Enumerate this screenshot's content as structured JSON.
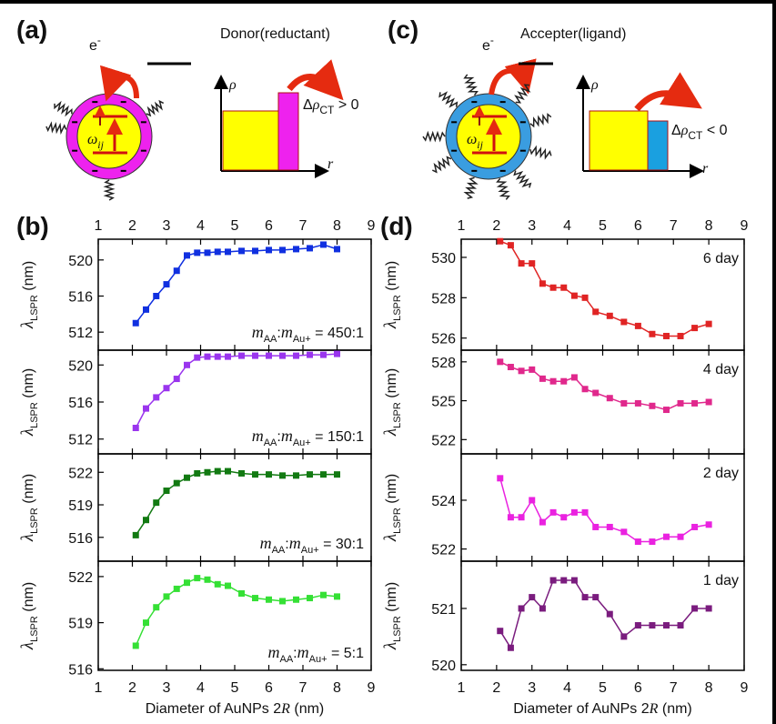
{
  "figure": {
    "panel_labels": [
      "(a)",
      "(b)",
      "(c)",
      "(d)"
    ],
    "diagrams": [
      {
        "electron": [
          "e",
          "-"
        ],
        "title": "Donor(reductant)",
        "density_axis": "ρ",
        "radius_axis": "r",
        "transition": [
          "ω",
          "ij"
        ],
        "charge_transfer": [
          "Δ",
          "ρ",
          "CT",
          " > 0"
        ]
      },
      {
        "electron": [
          "e",
          "-"
        ],
        "title": "Accepter(ligand)",
        "density_axis": "ρ",
        "radius_axis": "r",
        "transition": [
          "ω",
          "ij"
        ],
        "charge_transfer": [
          "Δ",
          "ρ",
          "CT",
          " < 0"
        ]
      }
    ]
  },
  "chart_data": [
    {
      "type": "line",
      "x": [
        2.1,
        2.4,
        2.7,
        3.0,
        3.3,
        3.6,
        3.9,
        4.2,
        4.5,
        4.8,
        5.2,
        5.6,
        6.0,
        6.4,
        6.8,
        7.2,
        7.6,
        8.0
      ],
      "values": [
        513,
        514.5,
        516,
        517.3,
        518.8,
        520.5,
        520.8,
        520.8,
        520.9,
        520.9,
        521,
        521,
        521.1,
        521.1,
        521.2,
        521.3,
        521.7,
        521.2
      ],
      "color": "#1030e0",
      "xlim": [
        1,
        9
      ],
      "xticks": [
        1,
        2,
        3,
        4,
        5,
        6,
        7,
        8,
        9
      ],
      "ylim": [
        510,
        522.3
      ],
      "yticks": [
        512,
        516,
        520
      ],
      "ylabel": [
        "λ",
        "LSPR",
        " (nm)"
      ],
      "annotation": [
        "m",
        "AA",
        ":",
        "m",
        "Au+",
        " = 450:1"
      ]
    },
    {
      "type": "line",
      "x": [
        2.1,
        2.4,
        2.7,
        3.0,
        3.3,
        3.6,
        3.9,
        4.2,
        4.5,
        4.8,
        5.2,
        5.6,
        6.0,
        6.4,
        6.8,
        7.2,
        7.6,
        8.0
      ],
      "values": [
        513.2,
        515.3,
        516.5,
        517.5,
        518.5,
        520,
        520.8,
        520.9,
        520.9,
        520.9,
        521,
        521,
        521,
        521,
        521,
        521.1,
        521.1,
        521.2
      ],
      "color": "#9a35ee",
      "xlim": [
        1,
        9
      ],
      "xticks": [
        1,
        2,
        3,
        4,
        5,
        6,
        7,
        8,
        9
      ],
      "ylim": [
        510.4,
        521.6
      ],
      "yticks": [
        512,
        516,
        520
      ],
      "ylabel": [
        "λ",
        "LSPR",
        " (nm)"
      ],
      "annotation": [
        "m",
        "AA",
        ":",
        "m",
        "Au+",
        " = 150:1"
      ]
    },
    {
      "type": "line",
      "x": [
        2.1,
        2.4,
        2.7,
        3.0,
        3.3,
        3.6,
        3.9,
        4.2,
        4.5,
        4.8,
        5.2,
        5.6,
        6.0,
        6.4,
        6.8,
        7.2,
        7.6,
        8.0
      ],
      "values": [
        516.2,
        517.6,
        519.2,
        520.3,
        521,
        521.5,
        521.9,
        522,
        522.1,
        522.1,
        521.9,
        521.8,
        521.8,
        521.7,
        521.7,
        521.8,
        521.8,
        521.8
      ],
      "color": "#127a12",
      "xlim": [
        1,
        9
      ],
      "xticks": [
        1,
        2,
        3,
        4,
        5,
        6,
        7,
        8,
        9
      ],
      "ylim": [
        513.8,
        523.7
      ],
      "yticks": [
        516,
        519,
        522
      ],
      "ylabel": [
        "λ",
        "LSPR",
        " (nm)"
      ],
      "annotation": [
        "m",
        "AA",
        ":",
        "m",
        "Au+",
        " = 30:1"
      ]
    },
    {
      "type": "line",
      "x": [
        2.1,
        2.4,
        2.7,
        3.0,
        3.3,
        3.6,
        3.9,
        4.2,
        4.5,
        4.8,
        5.2,
        5.6,
        6.0,
        6.4,
        6.8,
        7.2,
        7.6,
        8.0
      ],
      "values": [
        517.5,
        519,
        520,
        520.7,
        521.2,
        521.6,
        521.9,
        521.8,
        521.5,
        521.4,
        520.9,
        520.6,
        520.5,
        520.4,
        520.5,
        520.6,
        520.8,
        520.7
      ],
      "color": "#35e035",
      "xlim": [
        1,
        9
      ],
      "xticks": [
        1,
        2,
        3,
        4,
        5,
        6,
        7,
        8,
        9
      ],
      "ylim": [
        515.9,
        523
      ],
      "yticks": [
        516,
        519,
        522
      ],
      "ylabel": [
        "λ",
        "LSPR",
        " (nm)"
      ],
      "annotation": [
        "m",
        "AA",
        ":",
        "m",
        "Au+",
        " = 5:1"
      ],
      "xlabel": [
        "Diameter of AuNPs 2",
        "R",
        " (nm)"
      ]
    },
    {
      "type": "line",
      "x": [
        2.1,
        2.4,
        2.7,
        3.0,
        3.3,
        3.6,
        3.9,
        4.2,
        4.5,
        4.8,
        5.2,
        5.6,
        6.0,
        6.4,
        6.8,
        7.2,
        7.6,
        8.0
      ],
      "values": [
        530.8,
        530.6,
        529.7,
        529.7,
        528.7,
        528.5,
        528.5,
        528.1,
        528,
        527.3,
        527.1,
        526.8,
        526.6,
        526.2,
        526.1,
        526.1,
        526.5,
        526.7
      ],
      "color": "#e02424",
      "xlim": [
        1,
        9
      ],
      "xticks": [
        1,
        2,
        3,
        4,
        5,
        6,
        7,
        8,
        9
      ],
      "ylim": [
        525.4,
        530.9
      ],
      "yticks": [
        526,
        528,
        530
      ],
      "ylabel": [
        "λ",
        "LSPR",
        " (nm)"
      ],
      "annotation": "6 day"
    },
    {
      "type": "line",
      "x": [
        2.1,
        2.4,
        2.7,
        3.0,
        3.3,
        3.6,
        3.9,
        4.2,
        4.5,
        4.8,
        5.2,
        5.6,
        6.0,
        6.4,
        6.8,
        7.2,
        7.6,
        8.0
      ],
      "values": [
        528,
        527.6,
        527.3,
        527.4,
        526.7,
        526.5,
        526.5,
        526.8,
        525.9,
        525.6,
        525.2,
        524.8,
        524.8,
        524.6,
        524.3,
        524.8,
        524.8,
        524.9
      ],
      "color": "#e0288c",
      "xlim": [
        1,
        9
      ],
      "xticks": [
        1,
        2,
        3,
        4,
        5,
        6,
        7,
        8,
        9
      ],
      "ylim": [
        520.9,
        528.9
      ],
      "yticks": [
        522,
        525,
        528
      ],
      "ylabel": [
        "λ",
        "LSPR",
        " (nm)"
      ],
      "annotation": "4 day"
    },
    {
      "type": "line",
      "x": [
        2.1,
        2.4,
        2.7,
        3.0,
        3.3,
        3.6,
        3.9,
        4.2,
        4.5,
        4.8,
        5.2,
        5.6,
        6.0,
        6.4,
        6.8,
        7.2,
        7.6,
        8.0
      ],
      "values": [
        524.9,
        523.3,
        523.3,
        524,
        523.1,
        523.5,
        523.3,
        523.5,
        523.5,
        522.9,
        522.9,
        522.7,
        522.3,
        522.3,
        522.5,
        522.5,
        522.9,
        523
      ],
      "color": "#ea22e0",
      "xlim": [
        1,
        9
      ],
      "xticks": [
        1,
        2,
        3,
        4,
        5,
        6,
        7,
        8,
        9
      ],
      "ylim": [
        521.5,
        525.9
      ],
      "yticks": [
        522,
        524
      ],
      "ylabel": [
        "λ",
        "LSPR",
        " (nm)"
      ],
      "annotation": "2 day"
    },
    {
      "type": "line",
      "x": [
        2.1,
        2.4,
        2.7,
        3.0,
        3.3,
        3.6,
        3.9,
        4.2,
        4.5,
        4.8,
        5.2,
        5.6,
        6.0,
        6.4,
        6.8,
        7.2,
        7.6,
        8.0
      ],
      "values": [
        520.6,
        520.3,
        521,
        521.2,
        521,
        521.5,
        521.5,
        521.5,
        521.2,
        521.2,
        520.9,
        520.5,
        520.7,
        520.7,
        520.7,
        520.7,
        521,
        521
      ],
      "color": "#7a1c7e",
      "xlim": [
        1,
        9
      ],
      "xticks": [
        1,
        2,
        3,
        4,
        5,
        6,
        7,
        8,
        9
      ],
      "ylim": [
        519.9,
        521.84
      ],
      "yticks": [
        520,
        521
      ],
      "ylabel": [
        "λ",
        "LSPR",
        " (nm)"
      ],
      "annotation": "1 day",
      "xlabel": [
        "Diameter of AuNPs 2",
        "R",
        " (nm)"
      ]
    }
  ]
}
